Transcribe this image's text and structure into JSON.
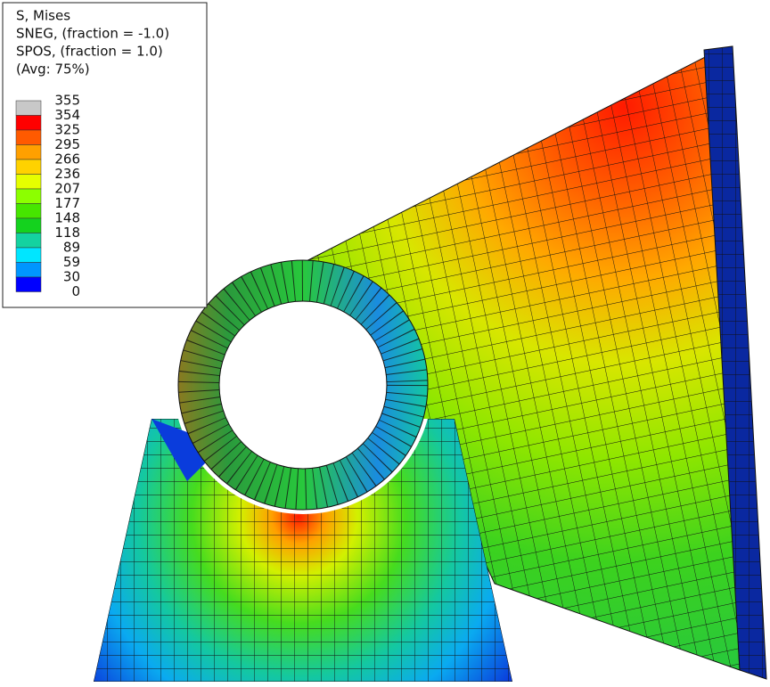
{
  "legend": {
    "title_lines": [
      "S, Mises",
      "SNEG, (fraction = -1.0)",
      "SPOS, (fraction = 1.0)",
      "(Avg: 75%)"
    ],
    "labels": [
      355,
      354,
      325,
      295,
      266,
      236,
      207,
      177,
      148,
      118,
      89,
      59,
      30,
      0
    ],
    "colors": [
      "#c8c8c8",
      "#ff0000",
      "#ff5a00",
      "#ffa000",
      "#ffd200",
      "#e6ff00",
      "#8cff00",
      "#46e600",
      "#14d21e",
      "#14d2a0",
      "#00e6ff",
      "#0096ff",
      "#0000ff"
    ]
  }
}
